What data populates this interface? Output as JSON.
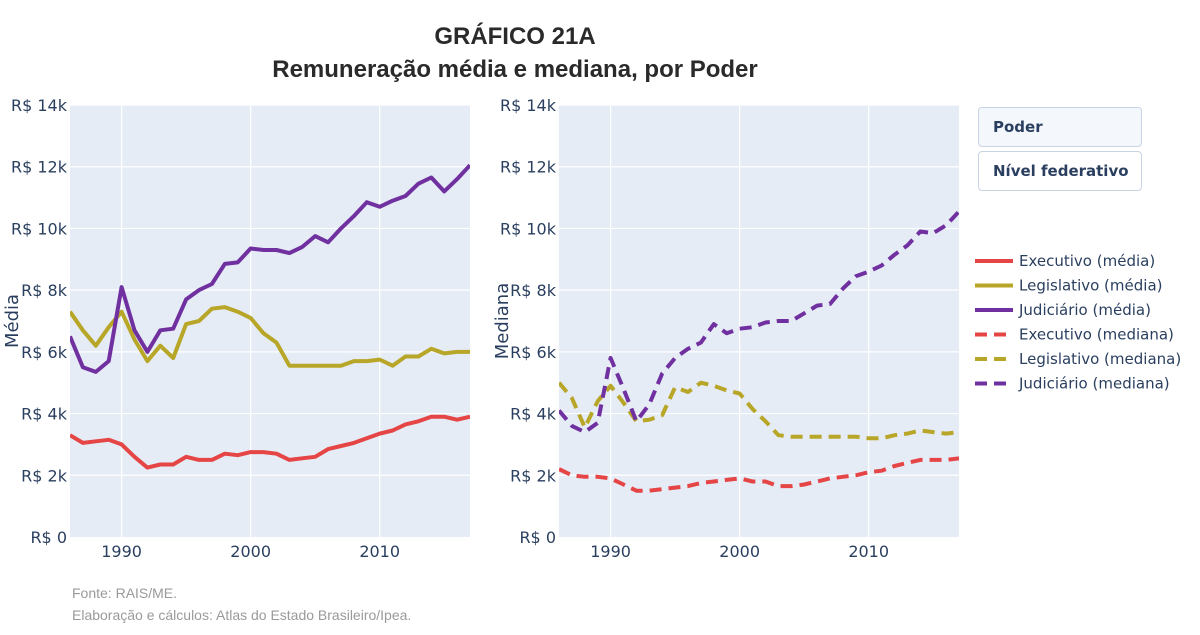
{
  "title": {
    "line1": "GRÁFICO 21A",
    "line2": "Remuneração média e mediana, por Poder"
  },
  "buttons": {
    "poder": "Poder",
    "nivel": "Nível federativo"
  },
  "footer": {
    "source": "Fonte: RAIS/ME.",
    "credits": "Elaboração e cálculos: Atlas do Estado Brasileiro/Ipea."
  },
  "colors": {
    "executivo": "#e54545",
    "legislativo": "#b8a628",
    "judiciario": "#7030a0",
    "plot_bg": "#e5ecf6",
    "grid": "#ffffff",
    "text": "#2a3f5f"
  },
  "legend": [
    {
      "label": "Executivo (média)",
      "color": "#e54545",
      "dash": "solid"
    },
    {
      "label": "Legislativo (média)",
      "color": "#b8a628",
      "dash": "solid"
    },
    {
      "label": "Judiciário (média)",
      "color": "#7030a0",
      "dash": "solid"
    },
    {
      "label": "Executivo (mediana)",
      "color": "#e54545",
      "dash": "dash"
    },
    {
      "label": "Legislativo (mediana)",
      "color": "#b8a628",
      "dash": "dash"
    },
    {
      "label": "Judiciário (mediana)",
      "color": "#7030a0",
      "dash": "dash"
    }
  ],
  "chart_data": [
    {
      "type": "line",
      "title": "",
      "xlabel": "",
      "ylabel": "Média",
      "xlim": [
        1986,
        2017
      ],
      "ylim": [
        0,
        14000
      ],
      "xticks": [
        1990,
        2000,
        2010
      ],
      "yticks": [
        0,
        2000,
        4000,
        6000,
        8000,
        10000,
        12000,
        14000
      ],
      "ytick_labels": [
        "R$ 0",
        "R$ 2k",
        "R$ 4k",
        "R$ 6k",
        "R$ 8k",
        "R$ 10k",
        "R$ 12k",
        "R$ 14k"
      ],
      "x": [
        1986,
        1987,
        1988,
        1989,
        1990,
        1991,
        1992,
        1993,
        1994,
        1995,
        1996,
        1997,
        1998,
        1999,
        2000,
        2001,
        2002,
        2003,
        2004,
        2005,
        2006,
        2007,
        2008,
        2009,
        2010,
        2011,
        2012,
        2013,
        2014,
        2015,
        2016,
        2017
      ],
      "series": [
        {
          "name": "Executivo (média)",
          "color": "#e54545",
          "dash": "solid",
          "values": [
            3300,
            3050,
            3100,
            3150,
            3000,
            2600,
            2250,
            2350,
            2350,
            2600,
            2500,
            2500,
            2700,
            2650,
            2750,
            2750,
            2700,
            2500,
            2550,
            2600,
            2850,
            2950,
            3050,
            3200,
            3350,
            3450,
            3650,
            3750,
            3900,
            3900,
            3800,
            3900
          ]
        },
        {
          "name": "Legislativo (média)",
          "color": "#b8a628",
          "dash": "solid",
          "values": [
            7300,
            6700,
            6200,
            6800,
            7300,
            6400,
            5700,
            6200,
            5800,
            6900,
            7000,
            7400,
            7450,
            7300,
            7100,
            6600,
            6300,
            5550,
            5550,
            5550,
            5550,
            5550,
            5700,
            5700,
            5750,
            5550,
            5850,
            5850,
            6100,
            5950,
            6000,
            6000
          ]
        },
        {
          "name": "Judiciário (média)",
          "color": "#7030a0",
          "dash": "solid",
          "values": [
            6500,
            5500,
            5350,
            5700,
            8100,
            6700,
            6000,
            6700,
            6750,
            7700,
            8000,
            8200,
            8850,
            8900,
            9350,
            9300,
            9300,
            9200,
            9400,
            9750,
            9550,
            10000,
            10400,
            10850,
            10700,
            10900,
            11050,
            11450,
            11650,
            11200,
            11600,
            12050
          ]
        }
      ]
    },
    {
      "type": "line",
      "title": "",
      "xlabel": "",
      "ylabel": "Mediana",
      "xlim": [
        1986,
        2017
      ],
      "ylim": [
        0,
        14000
      ],
      "xticks": [
        1990,
        2000,
        2010
      ],
      "yticks": [
        0,
        2000,
        4000,
        6000,
        8000,
        10000,
        12000,
        14000
      ],
      "ytick_labels": [
        "R$ 0",
        "R$ 2k",
        "R$ 4k",
        "R$ 6k",
        "R$ 8k",
        "R$ 10k",
        "R$ 12k",
        "R$ 14k"
      ],
      "x": [
        1986,
        1987,
        1988,
        1989,
        1990,
        1991,
        1992,
        1993,
        1994,
        1995,
        1996,
        1997,
        1998,
        1999,
        2000,
        2001,
        2002,
        2003,
        2004,
        2005,
        2006,
        2007,
        2008,
        2009,
        2010,
        2011,
        2012,
        2013,
        2014,
        2015,
        2016,
        2017
      ],
      "series": [
        {
          "name": "Executivo (mediana)",
          "color": "#e54545",
          "dash": "dash",
          "values": [
            2200,
            2000,
            1950,
            1950,
            1900,
            1700,
            1500,
            1500,
            1550,
            1600,
            1650,
            1750,
            1800,
            1850,
            1900,
            1800,
            1800,
            1650,
            1650,
            1700,
            1800,
            1900,
            1950,
            2000,
            2100,
            2150,
            2300,
            2400,
            2500,
            2500,
            2500,
            2550
          ]
        },
        {
          "name": "Legislativo (mediana)",
          "color": "#b8a628",
          "dash": "dash",
          "values": [
            5000,
            4500,
            3550,
            4400,
            4900,
            4350,
            3750,
            3800,
            3950,
            4850,
            4700,
            5000,
            4900,
            4750,
            4650,
            4150,
            3750,
            3300,
            3250,
            3250,
            3250,
            3250,
            3250,
            3250,
            3200,
            3200,
            3300,
            3350,
            3450,
            3400,
            3350,
            3400
          ]
        },
        {
          "name": "Judiciário (mediana)",
          "color": "#7030a0",
          "dash": "dash",
          "values": [
            4100,
            3600,
            3400,
            3700,
            5800,
            4800,
            3750,
            4300,
            5300,
            5800,
            6100,
            6300,
            6900,
            6600,
            6750,
            6800,
            6950,
            7000,
            7000,
            7250,
            7500,
            7550,
            8050,
            8450,
            8600,
            8800,
            9150,
            9450,
            9900,
            9850,
            10100,
            10550
          ]
        }
      ]
    }
  ]
}
